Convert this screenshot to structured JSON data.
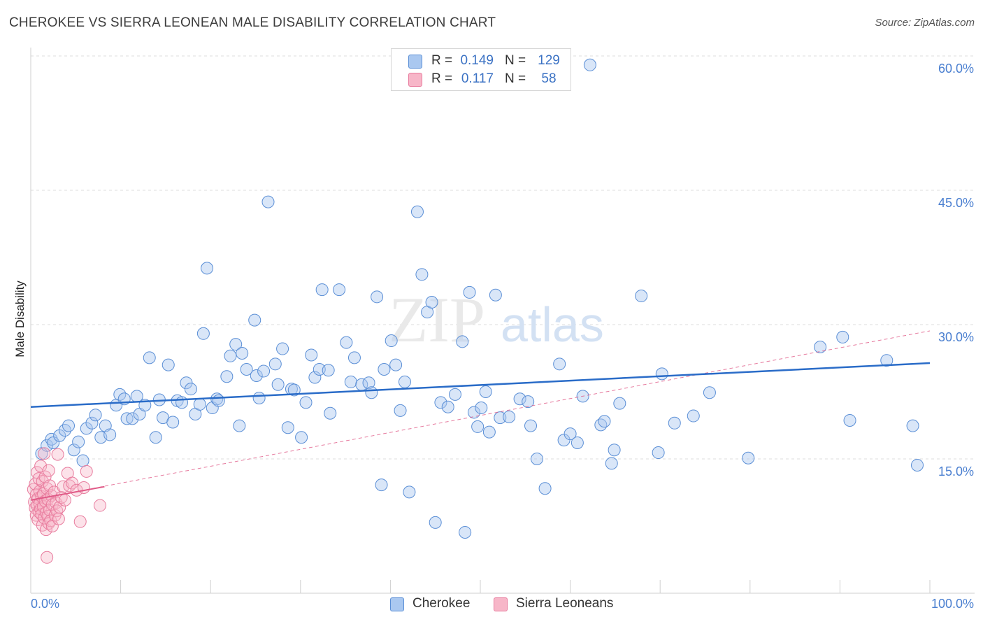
{
  "title": "CHEROKEE VS SIERRA LEONEAN MALE DISABILITY CORRELATION CHART",
  "source": "Source: ZipAtlas.com",
  "watermark": {
    "part1": "ZIP",
    "part2": "atlas"
  },
  "colors": {
    "cherokee_fill": "#aac8f0",
    "cherokee_stroke": "#5b8fd6",
    "cherokee_line": "#2a6cc8",
    "sierra_fill": "#f7b6c8",
    "sierra_stroke": "#e87c9e",
    "sierra_line": "#e05a87",
    "tick_text": "#4a7fd0",
    "grid": "#dddddd"
  },
  "legend": {
    "rows": [
      {
        "r_label": "R =",
        "r_value": "0.149",
        "n_label": "N =",
        "n_value": "129"
      },
      {
        "r_label": "R =",
        "r_value": "0.117",
        "n_label": "N =",
        "n_value": "58"
      }
    ]
  },
  "bottom_legend": {
    "items": [
      "Cherokee",
      "Sierra Leoneans"
    ]
  },
  "chart_data": {
    "type": "scatter",
    "title": "CHEROKEE VS SIERRA LEONEAN MALE DISABILITY CORRELATION CHART",
    "xlabel": "",
    "ylabel": "Male Disability",
    "xlim": [
      0,
      100
    ],
    "ylim": [
      0,
      60
    ],
    "x_tick_labels": [
      "0.0%",
      "100.0%"
    ],
    "y_ticks": [
      15,
      30,
      45,
      60
    ],
    "y_tick_labels": [
      "15.0%",
      "30.0%",
      "45.0%",
      "60.0%"
    ],
    "grid": "horizontal dashed",
    "series": [
      {
        "name": "Cherokee",
        "r": 0.149,
        "n": 129,
        "trend": {
          "x0": 0,
          "y0": 20.8,
          "x1": 100,
          "y1": 25.7,
          "style": "solid"
        },
        "points": [
          [
            1.2,
            15.6
          ],
          [
            1.8,
            16.5
          ],
          [
            2.3,
            17.2
          ],
          [
            2.5,
            16.8
          ],
          [
            3.2,
            17.6
          ],
          [
            3.8,
            18.2
          ],
          [
            4.2,
            18.7
          ],
          [
            4.8,
            16.0
          ],
          [
            5.3,
            16.9
          ],
          [
            5.8,
            14.8
          ],
          [
            6.2,
            18.4
          ],
          [
            6.8,
            19.0
          ],
          [
            7.2,
            19.9
          ],
          [
            7.8,
            17.4
          ],
          [
            8.3,
            18.7
          ],
          [
            8.8,
            17.7
          ],
          [
            9.5,
            21.0
          ],
          [
            9.9,
            22.2
          ],
          [
            10.4,
            21.7
          ],
          [
            10.7,
            19.5
          ],
          [
            11.3,
            19.5
          ],
          [
            11.8,
            22.0
          ],
          [
            12.1,
            20.0
          ],
          [
            12.7,
            21.0
          ],
          [
            13.2,
            26.3
          ],
          [
            13.9,
            17.4
          ],
          [
            14.3,
            21.6
          ],
          [
            14.7,
            19.6
          ],
          [
            15.3,
            25.5
          ],
          [
            15.8,
            19.1
          ],
          [
            16.3,
            21.5
          ],
          [
            16.8,
            21.3
          ],
          [
            17.3,
            23.5
          ],
          [
            17.8,
            22.8
          ],
          [
            18.3,
            20.0
          ],
          [
            18.8,
            21.1
          ],
          [
            19.2,
            29.0
          ],
          [
            19.6,
            36.3
          ],
          [
            20.2,
            20.7
          ],
          [
            20.7,
            21.7
          ],
          [
            20.9,
            21.5
          ],
          [
            21.8,
            24.2
          ],
          [
            22.2,
            26.5
          ],
          [
            22.8,
            27.8
          ],
          [
            23.2,
            18.7
          ],
          [
            23.5,
            26.8
          ],
          [
            24.0,
            25.0
          ],
          [
            24.9,
            30.5
          ],
          [
            25.1,
            24.3
          ],
          [
            25.4,
            21.8
          ],
          [
            25.9,
            24.8
          ],
          [
            26.4,
            43.7
          ],
          [
            27.2,
            25.6
          ],
          [
            27.5,
            23.3
          ],
          [
            28.0,
            27.3
          ],
          [
            28.6,
            18.5
          ],
          [
            29.0,
            22.8
          ],
          [
            29.3,
            22.7
          ],
          [
            30.1,
            17.4
          ],
          [
            30.6,
            21.3
          ],
          [
            31.2,
            26.6
          ],
          [
            31.6,
            24.1
          ],
          [
            32.1,
            25.0
          ],
          [
            32.4,
            33.9
          ],
          [
            33.1,
            24.9
          ],
          [
            33.3,
            20.1
          ],
          [
            34.3,
            33.9
          ],
          [
            35.1,
            28.0
          ],
          [
            35.6,
            23.6
          ],
          [
            36.0,
            26.3
          ],
          [
            36.8,
            23.3
          ],
          [
            37.6,
            23.5
          ],
          [
            37.9,
            22.4
          ],
          [
            38.5,
            33.1
          ],
          [
            39.0,
            12.1
          ],
          [
            39.3,
            25.0
          ],
          [
            40.1,
            28.2
          ],
          [
            40.6,
            25.5
          ],
          [
            41.1,
            20.4
          ],
          [
            41.6,
            23.6
          ],
          [
            42.1,
            11.3
          ],
          [
            43.0,
            42.6
          ],
          [
            43.5,
            35.6
          ],
          [
            44.1,
            31.4
          ],
          [
            44.6,
            32.5
          ],
          [
            45.0,
            7.9
          ],
          [
            45.6,
            21.3
          ],
          [
            46.4,
            20.8
          ],
          [
            47.2,
            22.2
          ],
          [
            48.0,
            28.1
          ],
          [
            48.3,
            6.8
          ],
          [
            48.8,
            33.6
          ],
          [
            49.3,
            20.2
          ],
          [
            49.7,
            18.6
          ],
          [
            50.1,
            20.7
          ],
          [
            50.6,
            22.5
          ],
          [
            51.0,
            18.0
          ],
          [
            51.7,
            33.3
          ],
          [
            52.2,
            19.6
          ],
          [
            53.2,
            19.7
          ],
          [
            54.4,
            21.7
          ],
          [
            55.3,
            21.4
          ],
          [
            55.6,
            18.7
          ],
          [
            56.3,
            15.0
          ],
          [
            57.2,
            11.7
          ],
          [
            58.8,
            25.6
          ],
          [
            59.3,
            17.1
          ],
          [
            60.0,
            17.8
          ],
          [
            60.8,
            16.8
          ],
          [
            61.4,
            22.0
          ],
          [
            62.2,
            59.0
          ],
          [
            63.4,
            18.8
          ],
          [
            63.8,
            19.2
          ],
          [
            64.6,
            14.5
          ],
          [
            64.9,
            16.0
          ],
          [
            65.5,
            21.2
          ],
          [
            67.9,
            33.2
          ],
          [
            69.8,
            15.7
          ],
          [
            70.2,
            24.5
          ],
          [
            71.6,
            19.0
          ],
          [
            73.7,
            19.8
          ],
          [
            75.5,
            22.4
          ],
          [
            79.8,
            15.1
          ],
          [
            87.8,
            27.5
          ],
          [
            90.3,
            28.6
          ],
          [
            91.1,
            19.3
          ],
          [
            95.2,
            26.0
          ],
          [
            98.1,
            18.7
          ],
          [
            98.6,
            14.3
          ]
        ]
      },
      {
        "name": "Sierra Leoneans",
        "r": 0.117,
        "n": 58,
        "trend": {
          "x0": 0,
          "y0": 10.4,
          "x1": 8.2,
          "y1": 11.9,
          "style": "solid"
        },
        "trend_extended": {
          "x0": 0,
          "y0": 10.4,
          "x1": 100,
          "y1": 29.3,
          "style": "dashed"
        },
        "points": [
          [
            0.3,
            11.6
          ],
          [
            0.4,
            10.2
          ],
          [
            0.5,
            9.5
          ],
          [
            0.5,
            12.2
          ],
          [
            0.6,
            8.7
          ],
          [
            0.6,
            11.0
          ],
          [
            0.7,
            9.8
          ],
          [
            0.7,
            13.5
          ],
          [
            0.8,
            10.6
          ],
          [
            0.8,
            8.2
          ],
          [
            0.9,
            9.1
          ],
          [
            0.9,
            12.8
          ],
          [
            1.0,
            10.0
          ],
          [
            1.0,
            11.4
          ],
          [
            1.1,
            9.4
          ],
          [
            1.1,
            14.2
          ],
          [
            1.2,
            8.8
          ],
          [
            1.2,
            10.8
          ],
          [
            1.3,
            7.6
          ],
          [
            1.3,
            12.5
          ],
          [
            1.4,
            9.7
          ],
          [
            1.4,
            11.1
          ],
          [
            1.5,
            8.4
          ],
          [
            1.5,
            15.6
          ],
          [
            1.6,
            10.3
          ],
          [
            1.6,
            13.0
          ],
          [
            1.7,
            7.1
          ],
          [
            1.7,
            9.0
          ],
          [
            1.8,
            11.7
          ],
          [
            1.8,
            4.0
          ],
          [
            1.9,
            8.6
          ],
          [
            1.9,
            10.5
          ],
          [
            2.0,
            7.8
          ],
          [
            2.0,
            13.7
          ],
          [
            2.1,
            9.3
          ],
          [
            2.1,
            12.0
          ],
          [
            2.2,
            8.1
          ],
          [
            2.3,
            10.9
          ],
          [
            2.4,
            9.9
          ],
          [
            2.4,
            7.5
          ],
          [
            2.6,
            11.3
          ],
          [
            2.7,
            8.7
          ],
          [
            2.8,
            10.1
          ],
          [
            2.9,
            9.2
          ],
          [
            3.0,
            15.5
          ],
          [
            3.1,
            8.3
          ],
          [
            3.2,
            9.6
          ],
          [
            3.4,
            10.7
          ],
          [
            3.6,
            11.9
          ],
          [
            3.8,
            10.4
          ],
          [
            4.1,
            13.4
          ],
          [
            4.3,
            12.0
          ],
          [
            4.6,
            12.3
          ],
          [
            5.1,
            11.5
          ],
          [
            5.5,
            8.0
          ],
          [
            5.9,
            11.8
          ],
          [
            6.2,
            13.6
          ],
          [
            7.7,
            9.8
          ]
        ]
      }
    ]
  }
}
